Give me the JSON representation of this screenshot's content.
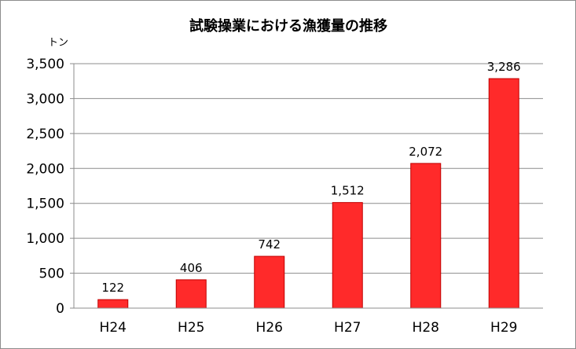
{
  "chart_data": {
    "type": "bar",
    "title": "試験操業における漁獲量の推移",
    "ylabel": "トン",
    "xlabel": "",
    "categories": [
      "H24",
      "H25",
      "H26",
      "H27",
      "H28",
      "H29"
    ],
    "values": [
      122,
      406,
      742,
      1512,
      2072,
      3286
    ],
    "value_labels": [
      "122",
      "406",
      "742",
      "1,512",
      "2,072",
      "3,286"
    ],
    "ylim": [
      0,
      3500
    ],
    "yticks": [
      0,
      500,
      1000,
      1500,
      2000,
      2500,
      3000,
      3500
    ],
    "ytick_labels": [
      "0",
      "500",
      "1,000",
      "1,500",
      "2,000",
      "2,500",
      "3,000",
      "3,500"
    ],
    "grid": true,
    "legend": "none",
    "bar_color": "#ff2a2a",
    "bar_stroke": "#c00000"
  }
}
